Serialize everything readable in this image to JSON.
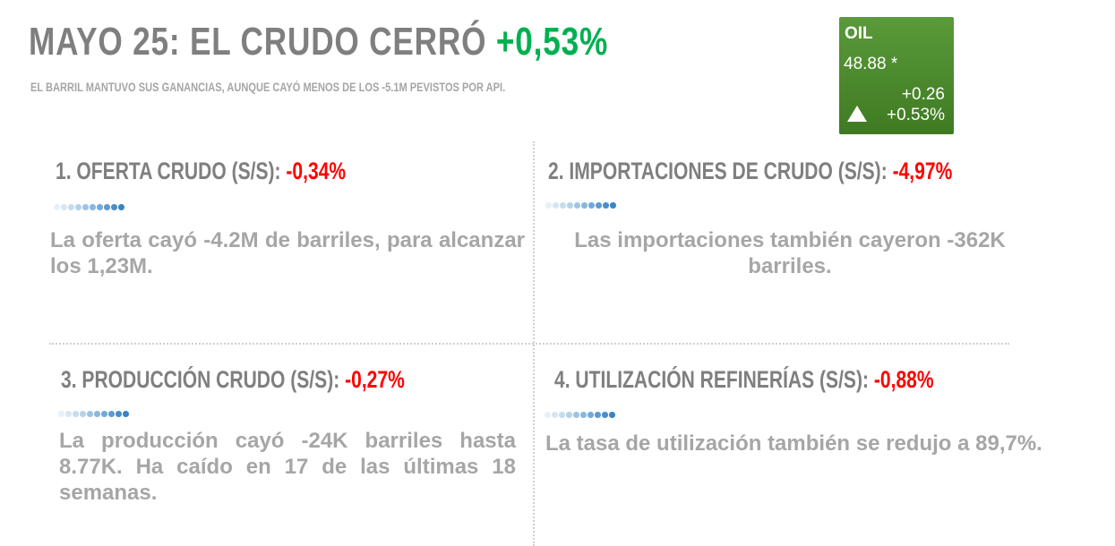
{
  "header": {
    "title": "MAYO 25: EL CRUDO CERRÓ",
    "title_change": "+0,53%",
    "subtitle": "EL BARRIL MANTUVO SUS GANANCIAS, AUNQUE CAYÓ MENOS DE LOS -5.1M PEVISTOS POR API."
  },
  "ticker": {
    "symbol": "OIL",
    "price": "48.88 *",
    "change": "+0.26",
    "change_pct": "+0.53%",
    "direction_icon": "triangle-up-icon",
    "bg_color": "#4a8a2e"
  },
  "colors": {
    "positive": "#00b050",
    "negative": "#ff0000",
    "text": "#7f7f7f",
    "muted": "#a6a6a6"
  },
  "sections": [
    {
      "heading": "1. OFERTA CRUDO (S/S):",
      "value": "-0,34%",
      "text": "La oferta cayó -4.2M de barriles, para alcanzar los 1,23M."
    },
    {
      "heading": "2. IMPORTACIONES DE CRUDO (S/S):",
      "value": "-4,97%",
      "text": "Las importaciones también cayeron -362K barriles."
    },
    {
      "heading": "3. PRODUCCIÓN CRUDO (S/S):",
      "value": "-0,27%",
      "text": "La producción cayó -24K barriles hasta 8.77K. Ha caído en 17 de las últimas 18 semanas."
    },
    {
      "heading": "4. UTILIZACIÓN REFINERÍAS (S/S):",
      "value": "-0,88%",
      "text": "La tasa de utilización también se redujo a 89,7%."
    }
  ]
}
